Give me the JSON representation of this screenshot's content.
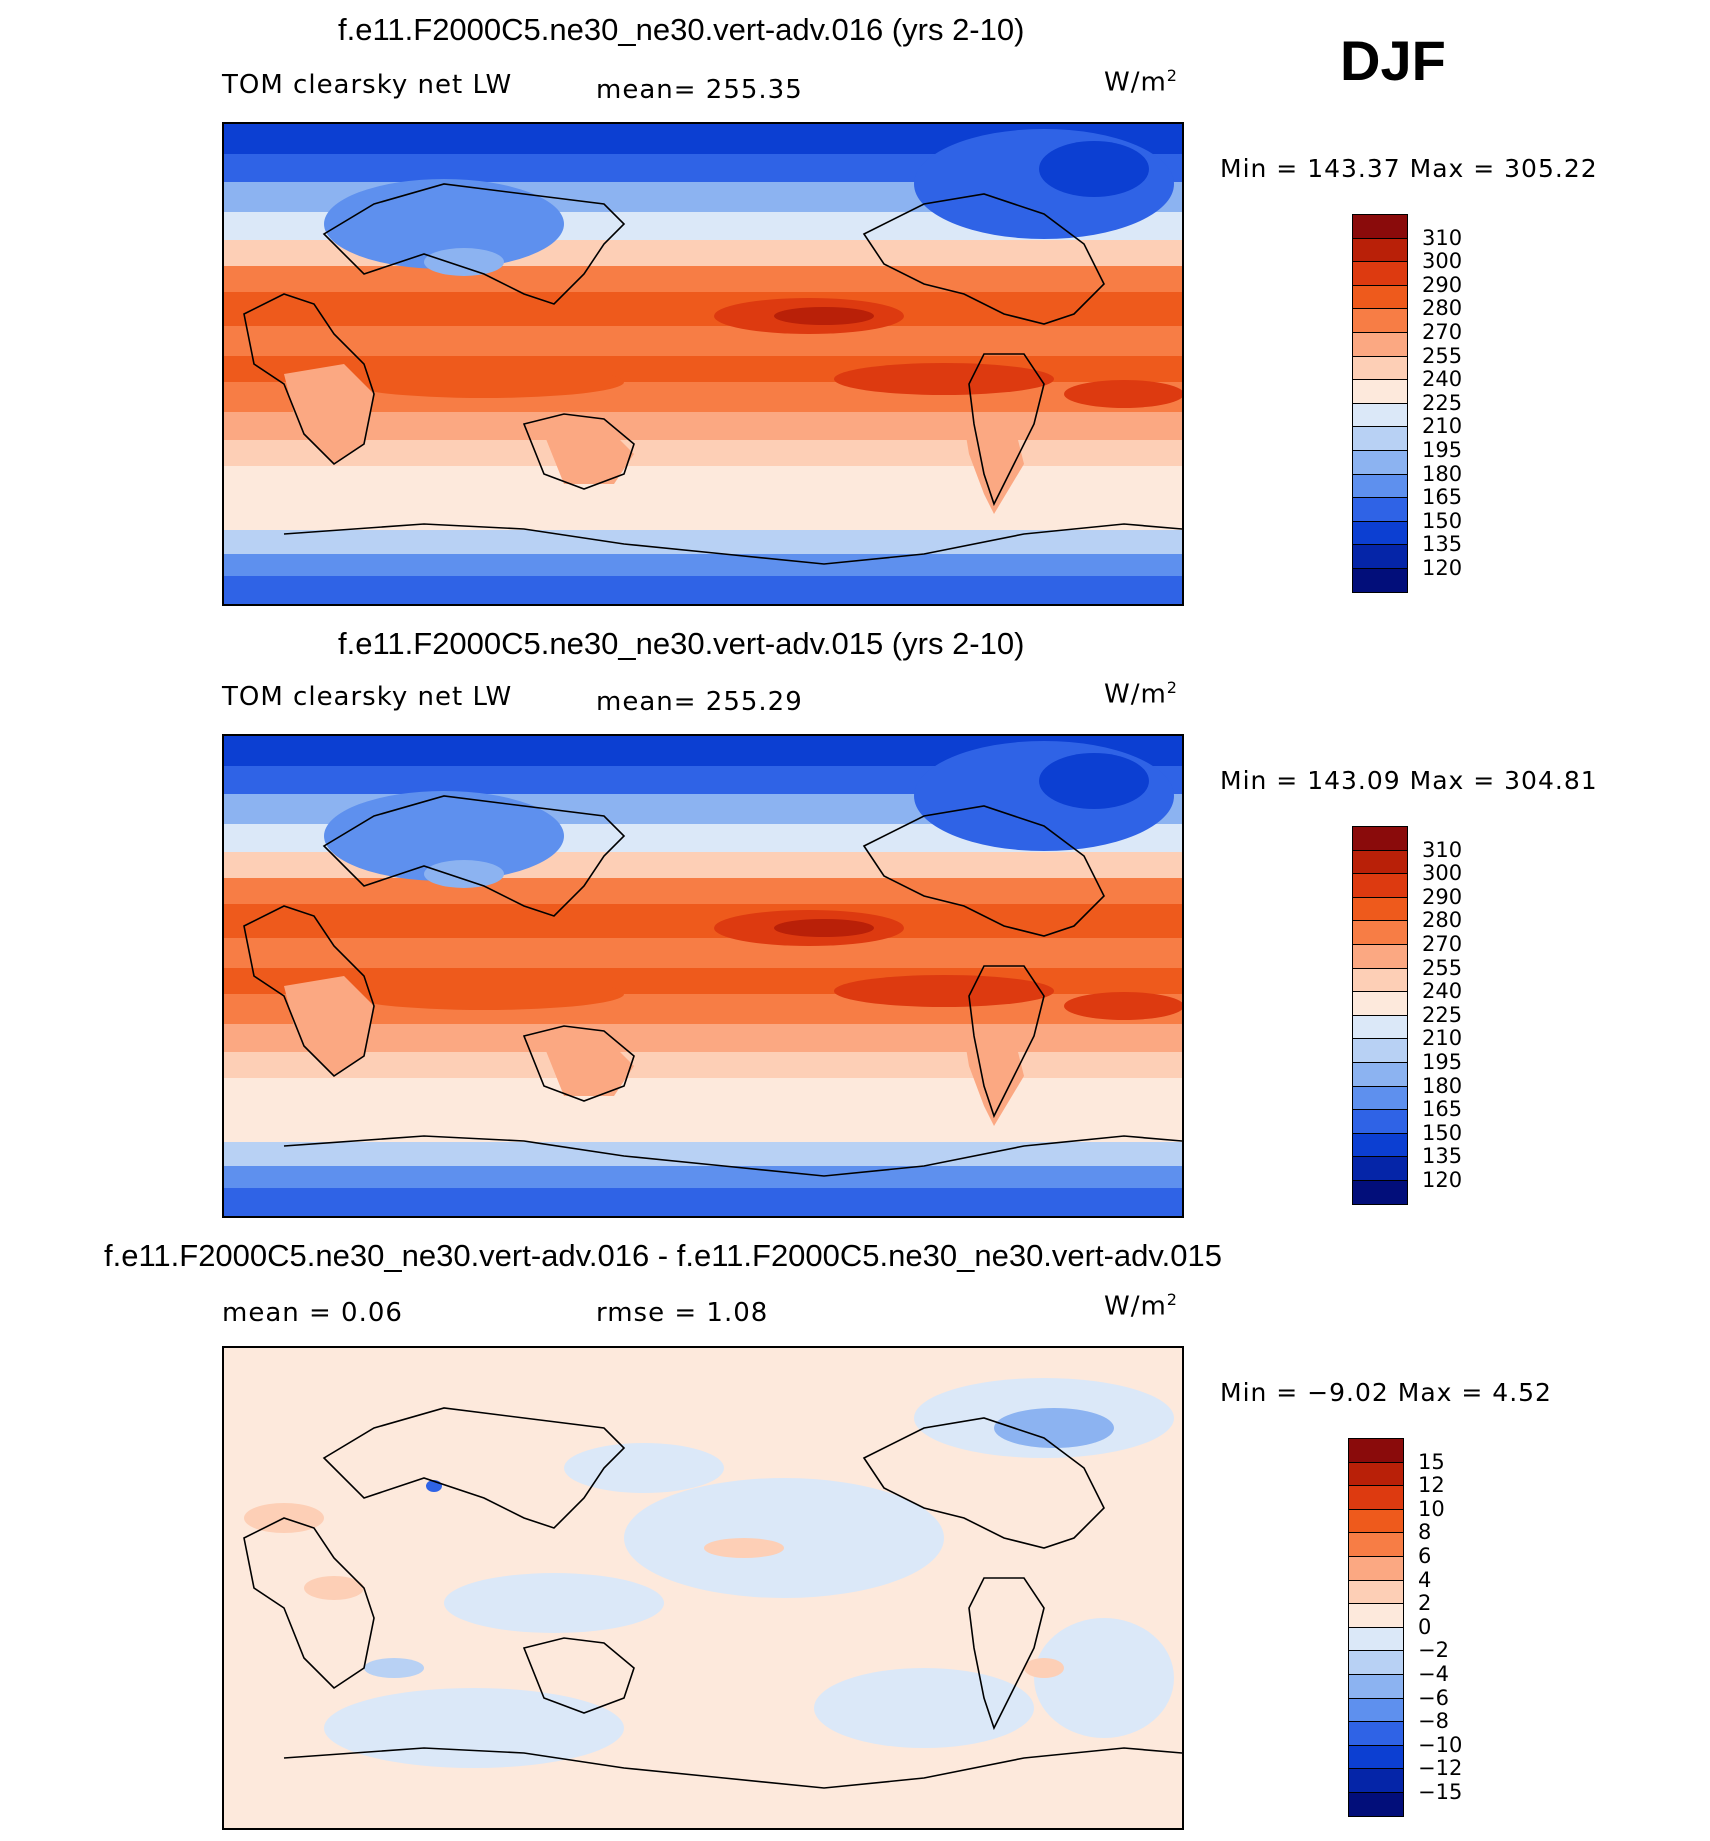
{
  "season": "DJF",
  "panels": [
    {
      "title": "f.e11.F2000C5.ne30_ne30.vert-adv.016 (yrs 2-10)",
      "left_label": "TOM clearsky net LW",
      "center_label": "mean= 255.35",
      "units": "W/m",
      "units_sup": "2",
      "minmax": "Min = 143.37 Max = 305.22",
      "colorbar": {
        "ticks": [
          "310",
          "300",
          "290",
          "280",
          "270",
          "255",
          "240",
          "225",
          "210",
          "195",
          "180",
          "165",
          "150",
          "135",
          "120"
        ],
        "colors": [
          "#8a0b0b",
          "#b92008",
          "#dd3a10",
          "#ee5a1c",
          "#f77d45",
          "#fba882",
          "#fdcfb6",
          "#fde9dc",
          "#dbe8f8",
          "#b8d1f4",
          "#8cb3f1",
          "#5e90ee",
          "#2f63e6",
          "#0c3fd2",
          "#0525a8",
          "#020e7a"
        ]
      }
    },
    {
      "title": "f.e11.F2000C5.ne30_ne30.vert-adv.015 (yrs 2-10)",
      "left_label": "TOM clearsky net LW",
      "center_label": "mean= 255.29",
      "units": "W/m",
      "units_sup": "2",
      "minmax": "Min = 143.09 Max = 304.81",
      "colorbar": {
        "ticks": [
          "310",
          "300",
          "290",
          "280",
          "270",
          "255",
          "240",
          "225",
          "210",
          "195",
          "180",
          "165",
          "150",
          "135",
          "120"
        ],
        "colors": [
          "#8a0b0b",
          "#b92008",
          "#dd3a10",
          "#ee5a1c",
          "#f77d45",
          "#fba882",
          "#fdcfb6",
          "#fde9dc",
          "#dbe8f8",
          "#b8d1f4",
          "#8cb3f1",
          "#5e90ee",
          "#2f63e6",
          "#0c3fd2",
          "#0525a8",
          "#020e7a"
        ]
      }
    },
    {
      "title": "f.e11.F2000C5.ne30_ne30.vert-adv.016 - f.e11.F2000C5.ne30_ne30.vert-adv.015",
      "left_label": "mean =    0.06",
      "center_label": "rmse =    1.08",
      "units": "W/m",
      "units_sup": "2",
      "minmax": "Min =  −9.02 Max =    4.52",
      "colorbar": {
        "ticks": [
          "15",
          "12",
          "10",
          "8",
          "6",
          "4",
          "2",
          "0",
          "−2",
          "−4",
          "−6",
          "−8",
          "−10",
          "−12",
          "−15"
        ],
        "colors": [
          "#8a0b0b",
          "#b92008",
          "#dd3a10",
          "#ee5a1c",
          "#f77d45",
          "#fba882",
          "#fdcfb6",
          "#fde9dc",
          "#dbe8f8",
          "#b8d1f4",
          "#8cb3f1",
          "#5e90ee",
          "#2f63e6",
          "#0c3fd2",
          "#0525a8",
          "#020e7a"
        ]
      }
    }
  ],
  "colors": {
    "diff_warm": "#fde9dc",
    "diff_cool": "#dbe8f8",
    "coastline": "#000000"
  }
}
